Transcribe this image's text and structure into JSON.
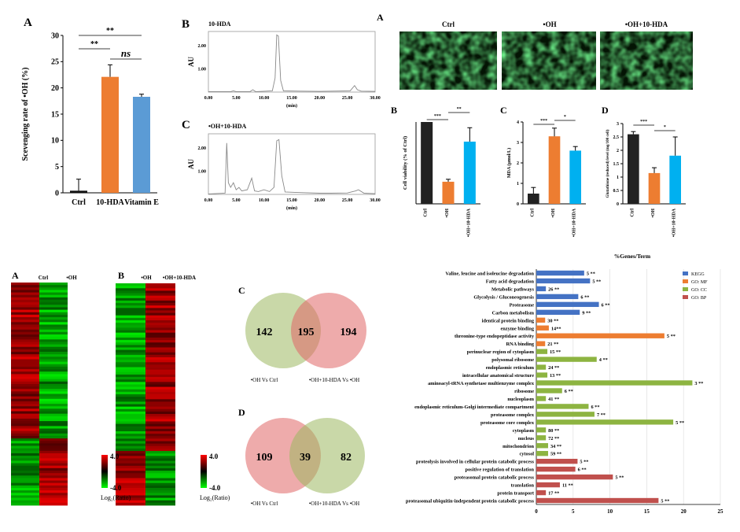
{
  "chart_data": [
    {
      "id": "scav",
      "type": "bar",
      "panel": "A",
      "ylabel": "Scevenging rate of •OH (%)",
      "ylim": [
        0,
        30
      ],
      "yticks": [
        0,
        5,
        10,
        15,
        20,
        25,
        30
      ],
      "categories": [
        "Ctrl",
        "10-HDA",
        "Vitamin E"
      ],
      "values": [
        0.4,
        22.1,
        18.3
      ],
      "errors": [
        2.2,
        2.3,
        0.5
      ],
      "colors": [
        "#111111",
        "#ED7D31",
        "#5B9BD5"
      ],
      "significance": [
        "**",
        "**",
        "ns"
      ]
    },
    {
      "id": "hplc1",
      "type": "line",
      "panel": "B",
      "title": "10-HDA",
      "ylabel": "AU",
      "xlabel": "(min)",
      "xlim": [
        0,
        30
      ],
      "ylim": [
        0,
        2.6
      ],
      "xticks": [
        "0.00",
        "5.00",
        "10.00",
        "15.00",
        "20.00",
        "25.00",
        "30.00"
      ],
      "yticks": [
        "1.00",
        "2.00"
      ],
      "x": [
        0,
        4,
        4.5,
        5,
        7.5,
        8,
        8.5,
        11.5,
        12,
        12.3,
        12.6,
        13,
        13.5,
        20,
        25.5,
        26.3,
        26.8,
        27.5,
        30
      ],
      "y": [
        0.02,
        0.02,
        0.05,
        0.02,
        0.02,
        0.1,
        0.02,
        0.05,
        0.6,
        2.45,
        2.4,
        0.5,
        0.05,
        0.03,
        0.05,
        0.28,
        0.1,
        0.04,
        0.03
      ]
    },
    {
      "id": "hplc2",
      "type": "line",
      "panel": "C",
      "title": "•OH+10-HDA",
      "ylabel": "AU",
      "xlabel": "(min)",
      "xlim": [
        0,
        30
      ],
      "ylim": [
        0,
        2.6
      ],
      "xticks": [
        "0.00",
        "5.00",
        "10.00",
        "15.00",
        "20.00",
        "25.00",
        "30.00"
      ],
      "yticks": [
        "1.00",
        "2.00"
      ],
      "x": [
        0,
        3,
        3.3,
        3.6,
        4,
        4.5,
        5,
        5.5,
        6,
        7,
        7.8,
        8.3,
        9,
        10,
        11,
        11.8,
        12.3,
        12.7,
        13.2,
        13.8,
        16,
        20,
        22,
        25,
        26.5,
        27,
        28,
        30
      ],
      "y": [
        0.02,
        0.05,
        2.2,
        0.5,
        0.3,
        0.5,
        0.2,
        0.3,
        0.15,
        0.2,
        0.7,
        0.15,
        0.12,
        0.2,
        0.12,
        0.3,
        2.3,
        2.35,
        0.8,
        0.1,
        0.08,
        0.05,
        0.05,
        0.06,
        0.15,
        0.2,
        0.05,
        0.03
      ]
    },
    {
      "id": "viab",
      "type": "bar",
      "panel": "B",
      "ylabel": "Cell viability (% of Ctrl)",
      "ylim": [
        0,
        100
      ],
      "categories": [
        "Ctrl",
        "•OH",
        "•OH+10-HDA"
      ],
      "values": [
        100,
        27,
        76
      ],
      "errors": [
        0,
        3,
        17
      ],
      "colors": [
        "#222222",
        "#ED7D31",
        "#00B0F0"
      ],
      "significance": [
        "***",
        "**"
      ]
    },
    {
      "id": "mda",
      "type": "bar",
      "panel": "C",
      "ylabel": "MDA (μmol/L)",
      "ylim": [
        0,
        4
      ],
      "yticks": [
        "0",
        "1",
        "2",
        "3",
        "4"
      ],
      "categories": [
        "Ctrl",
        "•OH",
        "•OH+10-HDA"
      ],
      "values": [
        0.5,
        3.3,
        2.6
      ],
      "errors": [
        0.3,
        0.4,
        0.2
      ],
      "colors": [
        "#222222",
        "#ED7D31",
        "#00B0F0"
      ],
      "significance": [
        "***",
        "*"
      ]
    },
    {
      "id": "gsh",
      "type": "bar",
      "panel": "D",
      "ylabel": "Glutathione (reduced) level (mg/100 cell)",
      "ylim": [
        0,
        3
      ],
      "yticks": [
        "0",
        "0.5",
        "1",
        "1.5",
        "2",
        "2.5",
        "3"
      ],
      "categories": [
        "Ctrl",
        "•OH",
        "•OH+10-HDA"
      ],
      "values": [
        2.6,
        1.15,
        1.8
      ],
      "errors": [
        0.1,
        0.2,
        0.7
      ],
      "colors": [
        "#222222",
        "#ED7D31",
        "#00B0F0"
      ],
      "significance": [
        "***",
        "*"
      ]
    },
    {
      "id": "go",
      "type": "bar",
      "orientation": "horizontal",
      "title": "%Genes/Term",
      "xlim": [
        0,
        25
      ],
      "xticks": [
        "0",
        "5",
        "10",
        "15",
        "20",
        "25"
      ],
      "legend": [
        "KEGG",
        "GO: MF",
        "GO: CC",
        "GO: BP"
      ],
      "legend_colors": [
        "#4472C4",
        "#ED7D31",
        "#8DB441",
        "#C0504D"
      ],
      "legend_position": "top-right",
      "categories": [
        "Valine, leucine and isoleucine degradation",
        "Fatty acid degradation",
        "Metabolic pathways",
        "Glycolysis / Gluconeogenesis",
        "Proteasome",
        "Carbon metabolism",
        "identical protein binding",
        "enzyme binding",
        "threonine-type endopeptidase activity",
        "RNA binding",
        "perinuclear region of cytoplasm",
        "polysomal ribosome",
        "endoplasmic reticulum",
        "intracellular anatomical structure",
        "aminoacyl-tRNA synthetase multienzyme complex",
        "ribosome",
        "nucleoplasm",
        "endoplasmic reticulum-Golgi intermediate compartment",
        "proteasome complex",
        "proteasome core complex",
        "cytoplasm",
        "nucleus",
        "mitochondrion",
        "cytosol",
        "proteolysis involved in cellular protein catabolic process",
        "positive regulation of translation",
        "proteasomal protein catabolic process",
        "translation",
        "protein transport",
        "proteasomal ubiquitin-independent protein catabolic process"
      ],
      "values": [
        6.5,
        7.3,
        1.3,
        5.7,
        8.5,
        5.9,
        1.2,
        1.7,
        17.4,
        1.2,
        1.5,
        8.2,
        1.3,
        1.5,
        21.2,
        3.5,
        1.3,
        7.1,
        7.9,
        18.6,
        1.3,
        1.3,
        1.6,
        1.6,
        5.6,
        5.3,
        10.4,
        3.2,
        1.3,
        16.6
      ],
      "groups": [
        0,
        0,
        0,
        0,
        0,
        0,
        1,
        1,
        1,
        1,
        2,
        2,
        2,
        2,
        2,
        2,
        2,
        2,
        2,
        2,
        2,
        2,
        2,
        2,
        3,
        3,
        3,
        3,
        3,
        3
      ],
      "labels": [
        "5 **",
        "5 **",
        "26 **",
        "6 **",
        "6 **",
        "9 **",
        "30 **",
        "14**",
        "5 **",
        "21 **",
        "15 **",
        "4 **",
        "24 **",
        "13 **",
        "3 **",
        "6 **",
        "41 **",
        "6 **",
        "7 **",
        "5 **",
        "80 **",
        "72 **",
        "34 **",
        "59 **",
        "5 **",
        "6 **",
        "5 **",
        "11 **",
        "17 **",
        "5 **"
      ]
    }
  ],
  "micro": {
    "label": "A",
    "titles": [
      "Ctrl",
      "•OH",
      "•OH+10-HDA"
    ]
  },
  "heatmaps": {
    "left": {
      "label": "A",
      "cols": [
        "Ctrl",
        "•OH"
      ],
      "legend_max": "4.0",
      "legend_min": "-4.0",
      "legend_label": "Log₂(Ratio)"
    },
    "right": {
      "label": "B",
      "cols": [
        "•OH",
        "•OH+10-HDA"
      ],
      "legend_max": "4.0",
      "legend_min": "-4.0",
      "legend_label": "Log₂(Ratio)"
    }
  },
  "venn": {
    "c": {
      "label": "C",
      "left": "142",
      "mid": "195",
      "right": "194",
      "left_label": "•OH Vs Ctrl",
      "right_label": "•OH+10-HDA Vs •OH"
    },
    "d": {
      "label": "D",
      "left": "109",
      "mid": "39",
      "right": "82",
      "left_label": "•OH Vs Ctrl",
      "right_label": "•OH+10-HDA Vs •OH"
    }
  }
}
